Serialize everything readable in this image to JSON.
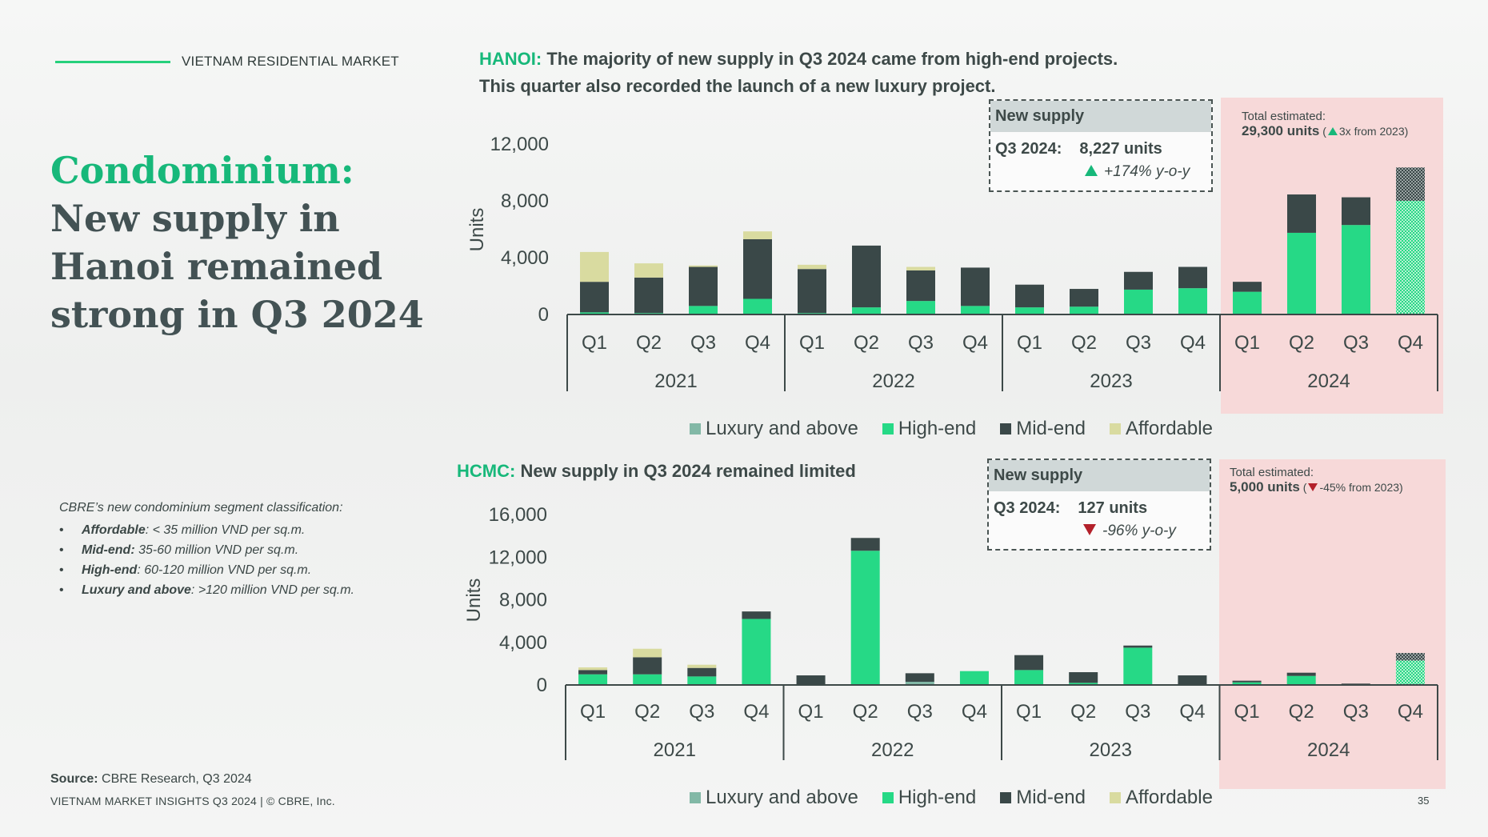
{
  "header": {
    "label": "VIETNAM RESIDENTIAL MARKET"
  },
  "title": {
    "accent": "Condominium:",
    "rest": "New supply in Hanoi remained strong in Q3 2024"
  },
  "classification": {
    "intro": "CBRE’s new condominium segment classification:",
    "items": [
      {
        "name": "Affordable",
        "desc": ": < 35 million VND per sq.m."
      },
      {
        "name": "Mid-end:",
        "desc": " 35-60 million VND per sq.m."
      },
      {
        "name": "High-end",
        "desc": ": 60-120 million VND per sq.m."
      },
      {
        "name": "Luxury and above",
        "desc": ": >120 million VND per sq.m."
      }
    ]
  },
  "footer": {
    "source_label": "Source:",
    "source_text": " CBRE Research, Q3 2024",
    "copyright": "VIETNAM MARKET INSIGHTS Q3 2024 | © CBRE, Inc.",
    "page_number": "35"
  },
  "colors": {
    "luxury": "#82b8a6",
    "high_end": "#26d986",
    "mid_end": "#3a4848",
    "affordable": "#d9dba0",
    "forecast_band": "#f7d9d9",
    "accent": "#17b87a"
  },
  "legend": [
    "Luxury and above",
    "High-end",
    "Mid-end",
    "Affordable"
  ],
  "hanoi": {
    "city": "HANOI:",
    "title_line1": " The majority of new supply in Q3 2024 came from high-end projects.",
    "title_line2": "This quarter also recorded the launch of a new luxury project.",
    "callout": {
      "header": "New supply",
      "quarter": "Q3 2024:",
      "value": "8,227 units",
      "change": "+174% y-o-y"
    },
    "estimate": {
      "label": "Total estimated:",
      "value": "29,300 units",
      "change_open": " (",
      "change": "3x from 2023)"
    }
  },
  "hcmc": {
    "city": "HCMC:",
    "title_line1": " New supply in Q3 2024 remained limited",
    "callout": {
      "header": "New supply",
      "quarter": "Q3 2024:",
      "value": "127 units",
      "change": "-96% y-o-y"
    },
    "estimate": {
      "label": "Total estimated:",
      "value": "5,000 units",
      "change_open": " (",
      "change": "-45% from 2023)"
    }
  },
  "chart_data": [
    {
      "type": "bar",
      "stacked": true,
      "title": "HANOI",
      "ylabel": "Units",
      "ylim": [
        0,
        12000
      ],
      "yticks": [
        0,
        4000,
        8000,
        12000
      ],
      "quarters": [
        "Q1",
        "Q2",
        "Q3",
        "Q4",
        "Q1",
        "Q2",
        "Q3",
        "Q4",
        "Q1",
        "Q2",
        "Q3",
        "Q4",
        "Q1",
        "Q2",
        "Q3",
        "Q4"
      ],
      "years": [
        "2021",
        "2022",
        "2023",
        "2024"
      ],
      "forecast_last": true,
      "series": [
        {
          "name": "Luxury and above",
          "values": [
            0,
            0,
            0,
            0,
            0,
            0,
            0,
            0,
            0,
            0,
            0,
            0,
            0,
            0,
            0,
            0
          ]
        },
        {
          "name": "High-end",
          "values": [
            150,
            100,
            600,
            1100,
            100,
            500,
            950,
            600,
            500,
            550,
            1750,
            1850,
            1600,
            5750,
            6300,
            8000
          ]
        },
        {
          "name": "Mid-end",
          "values": [
            2150,
            2500,
            2750,
            4200,
            3100,
            4350,
            2150,
            2700,
            1600,
            1250,
            1250,
            1500,
            700,
            2700,
            1950,
            2350
          ]
        },
        {
          "name": "Affordable",
          "values": [
            2100,
            1000,
            100,
            550,
            300,
            0,
            250,
            0,
            0,
            0,
            0,
            0,
            0,
            0,
            0,
            0
          ]
        }
      ]
    },
    {
      "type": "bar",
      "stacked": true,
      "title": "HCMC",
      "ylabel": "Units",
      "ylim": [
        0,
        16000
      ],
      "yticks": [
        0,
        4000,
        8000,
        12000,
        16000
      ],
      "quarters": [
        "Q1",
        "Q2",
        "Q3",
        "Q4",
        "Q1",
        "Q2",
        "Q3",
        "Q4",
        "Q1",
        "Q2",
        "Q3",
        "Q4",
        "Q1",
        "Q2",
        "Q3",
        "Q4"
      ],
      "years": [
        "2021",
        "2022",
        "2023",
        "2024"
      ],
      "forecast_last": true,
      "series": [
        {
          "name": "Luxury and above",
          "values": [
            0,
            0,
            0,
            0,
            0,
            0,
            300,
            0,
            0,
            0,
            0,
            0,
            0,
            0,
            0,
            0
          ]
        },
        {
          "name": "High-end",
          "values": [
            1000,
            1000,
            800,
            6200,
            0,
            12600,
            0,
            1300,
            1400,
            200,
            3500,
            0,
            250,
            850,
            0,
            2300
          ]
        },
        {
          "name": "Mid-end",
          "values": [
            400,
            1600,
            800,
            700,
            900,
            1200,
            800,
            0,
            1400,
            1000,
            200,
            900,
            150,
            300,
            127,
            700
          ]
        },
        {
          "name": "Affordable",
          "values": [
            250,
            800,
            300,
            0,
            0,
            0,
            0,
            0,
            0,
            0,
            0,
            0,
            0,
            0,
            0,
            0
          ]
        }
      ]
    }
  ]
}
